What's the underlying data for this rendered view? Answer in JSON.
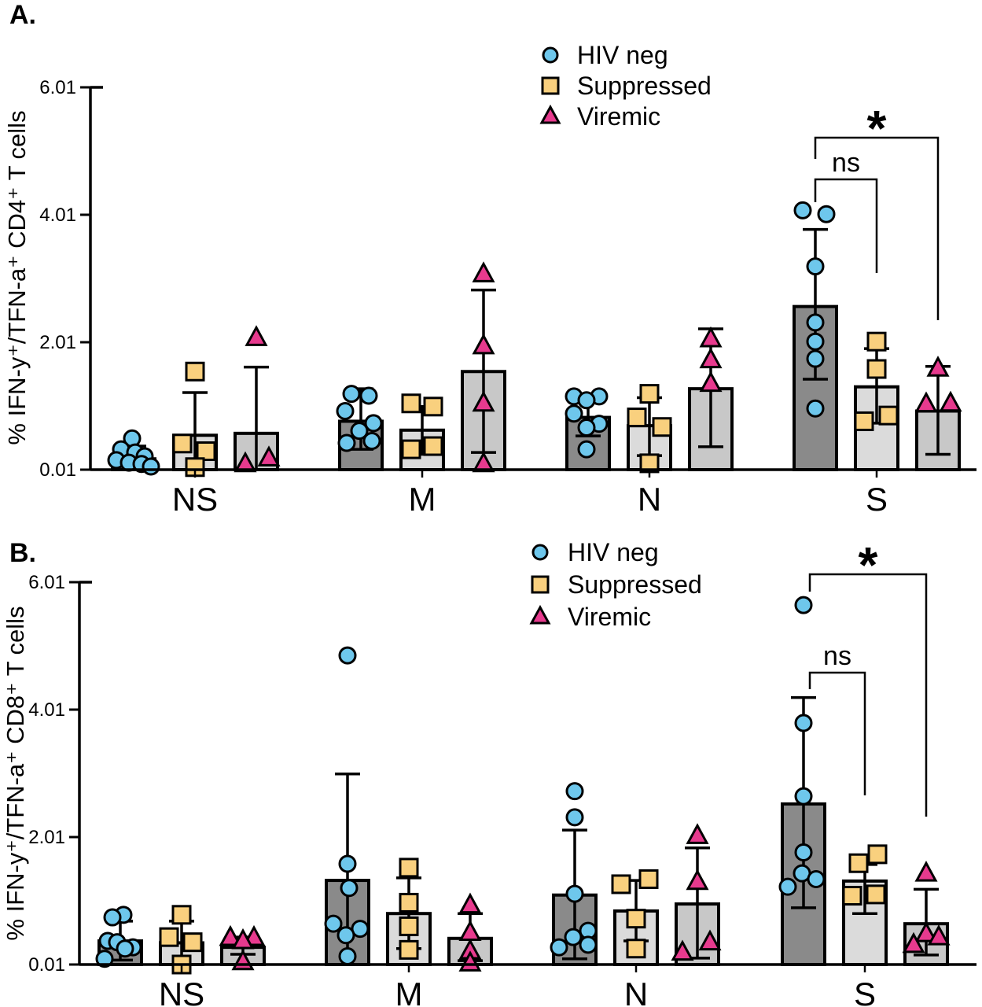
{
  "figure": {
    "panels": [
      {
        "label": "A.",
        "ylabel": "% IFN-y⁺/TFN-a⁺ CD4⁺ T cells"
      },
      {
        "label": "B.",
        "ylabel": "% IFN-y⁺/TFN-a⁺ CD8⁺ T cells"
      }
    ],
    "legend": [
      "HIV neg",
      "Suppressed",
      "Viremic"
    ],
    "colors": {
      "hiv_neg_marker": "#6EC7EC",
      "suppressed_marker": "#F9D07E",
      "viremic_marker": "#E73A8E",
      "hiv_neg_bar": "#8A8A8A",
      "suppressed_bar": "#DBDBDB",
      "viremic_bar": "#C8C8C8",
      "outline": "#000000"
    }
  },
  "chart_data": [
    {
      "type": "bar",
      "title": "",
      "ylabel": "% IFN-y⁺/TFN-a⁺ CD4⁺ T cells",
      "xlabel": "",
      "categories": [
        "NS",
        "M",
        "N",
        "S"
      ],
      "yticks": [
        "0.01",
        "2.01",
        "4.01",
        "6.01"
      ],
      "ytick_values": [
        0.01,
        2.01,
        4.01,
        6.01
      ],
      "ylim": [
        0.01,
        6.01
      ],
      "grid": false,
      "legend_position": "top-center",
      "series": [
        {
          "name": "HIV neg",
          "marker": "circle",
          "marker_color": "#6EC7EC",
          "bar_color": "#8A8A8A",
          "means": [
            0.18,
            0.77,
            0.83,
            2.57
          ],
          "err_lo": [
            0.02,
            0.33,
            0.54,
            1.43
          ],
          "err_hi": [
            0.38,
            1.28,
            1.12,
            3.78
          ],
          "points": [
            [
              {
                "v": 0.5,
                "dx": -2
              },
              {
                "v": 0.33,
                "dx": -16
              },
              {
                "v": 0.28,
                "dx": 2
              },
              {
                "v": 0.22,
                "dx": 14
              },
              {
                "v": 0.16,
                "dx": -22
              },
              {
                "v": 0.12,
                "dx": -6
              },
              {
                "v": 0.1,
                "dx": 10
              },
              {
                "v": 0.06,
                "dx": 22
              }
            ],
            [
              {
                "v": 1.2,
                "dx": -12
              },
              {
                "v": 1.17,
                "dx": 10
              },
              {
                "v": 0.93,
                "dx": -20
              },
              {
                "v": 0.74,
                "dx": 16
              },
              {
                "v": 0.62,
                "dx": -2
              },
              {
                "v": 0.46,
                "dx": 14
              },
              {
                "v": 0.43,
                "dx": -18
              }
            ],
            [
              {
                "v": 1.16,
                "dx": -18
              },
              {
                "v": 1.16,
                "dx": 14
              },
              {
                "v": 1.1,
                "dx": -2
              },
              {
                "v": 0.89,
                "dx": -18
              },
              {
                "v": 0.73,
                "dx": 14
              },
              {
                "v": 0.67,
                "dx": -2
              },
              {
                "v": 0.33,
                "dx": -2
              }
            ],
            [
              {
                "v": 4.08,
                "dx": -16
              },
              {
                "v": 4.02,
                "dx": 14
              },
              {
                "v": 3.2,
                "dx": 0
              },
              {
                "v": 2.32,
                "dx": 0
              },
              {
                "v": 2.02,
                "dx": 0
              },
              {
                "v": 1.75,
                "dx": 0
              },
              {
                "v": 0.97,
                "dx": 0
              }
            ]
          ]
        },
        {
          "name": "Suppressed",
          "marker": "square",
          "marker_color": "#F9D07E",
          "bar_color": "#DBDBDB",
          "means": [
            0.55,
            0.63,
            0.7,
            1.31
          ],
          "err_lo": [
            0.02,
            0.25,
            0.23,
            0.74
          ],
          "err_hi": [
            1.22,
            1.0,
            1.14,
            1.91
          ],
          "points": [
            [
              {
                "v": 1.55,
                "dx": 0
              },
              {
                "v": 0.42,
                "dx": -16
              },
              {
                "v": 0.3,
                "dx": 14
              },
              {
                "v": 0.05,
                "dx": 0
              }
            ],
            [
              {
                "v": 1.05,
                "dx": -14
              },
              {
                "v": 1.0,
                "dx": 14
              },
              {
                "v": 0.38,
                "dx": 14
              },
              {
                "v": 0.33,
                "dx": -14
              }
            ],
            [
              {
                "v": 1.2,
                "dx": 0
              },
              {
                "v": 0.83,
                "dx": -16
              },
              {
                "v": 0.68,
                "dx": 16
              },
              {
                "v": 0.11,
                "dx": 0
              }
            ],
            [
              {
                "v": 2.02,
                "dx": 0
              },
              {
                "v": 1.59,
                "dx": 0
              },
              {
                "v": 0.86,
                "dx": 15
              },
              {
                "v": 0.77,
                "dx": -16
              }
            ]
          ]
        },
        {
          "name": "Viremic",
          "marker": "triangle",
          "marker_color": "#E73A8E",
          "bar_color": "#C8C8C8",
          "means": [
            0.58,
            1.55,
            1.28,
            0.93
          ],
          "err_lo": [
            0.02,
            0.28,
            0.37,
            0.25
          ],
          "err_hi": [
            1.62,
            2.83,
            2.22,
            1.63
          ],
          "points": [
            [
              {
                "v": 2.08,
                "dx": 0
              },
              {
                "v": 0.19,
                "dx": 16
              },
              {
                "v": 0.1,
                "dx": -14
              }
            ],
            [
              {
                "v": 3.08,
                "dx": 0
              },
              {
                "v": 1.95,
                "dx": 0
              },
              {
                "v": 1.05,
                "dx": 0
              },
              {
                "v": 0.1,
                "dx": 0
              }
            ],
            [
              {
                "v": 2.06,
                "dx": 0
              },
              {
                "v": 1.73,
                "dx": 0
              },
              {
                "v": 1.36,
                "dx": 0
              }
            ],
            [
              {
                "v": 1.6,
                "dx": 0
              },
              {
                "v": 1.05,
                "dx": 16
              },
              {
                "v": 1.04,
                "dx": -15
              }
            ]
          ]
        }
      ],
      "annotations": [
        {
          "text": "*",
          "comparison": "HIV neg vs Viremic at S"
        },
        {
          "text": "ns",
          "comparison": "HIV neg vs Suppressed at S"
        }
      ]
    },
    {
      "type": "bar",
      "title": "",
      "ylabel": "% IFN-y⁺/TFN-a⁺ CD8⁺ T cells",
      "xlabel": "",
      "categories": [
        "NS",
        "M",
        "N",
        "S"
      ],
      "yticks": [
        "0.01",
        "2.01",
        "4.01",
        "6.01"
      ],
      "ytick_values": [
        0.01,
        2.01,
        4.01,
        6.01
      ],
      "ylim": [
        0.01,
        6.01
      ],
      "grid": false,
      "legend_position": "top-center",
      "series": [
        {
          "name": "HIV neg",
          "marker": "circle",
          "marker_color": "#6EC7EC",
          "bar_color": "#8A8A8A",
          "means": [
            0.38,
            1.33,
            1.1,
            2.53
          ],
          "err_lo": [
            0.08,
            0.04,
            0.1,
            0.9
          ],
          "err_hi": [
            0.69,
            3.0,
            2.12,
            4.2
          ],
          "points": [
            [
              {
                "v": 0.79,
                "dx": 4
              },
              {
                "v": 0.75,
                "dx": -10
              },
              {
                "v": 0.38,
                "dx": -16
              },
              {
                "v": 0.36,
                "dx": -4
              },
              {
                "v": 0.28,
                "dx": 16
              },
              {
                "v": 0.26,
                "dx": 6
              },
              {
                "v": 0.1,
                "dx": -20
              }
            ],
            [
              {
                "v": 4.86,
                "dx": 0
              },
              {
                "v": 1.59,
                "dx": 0
              },
              {
                "v": 1.21,
                "dx": 2
              },
              {
                "v": 0.65,
                "dx": -18
              },
              {
                "v": 0.57,
                "dx": 16
              },
              {
                "v": 0.47,
                "dx": -2
              },
              {
                "v": 0.14,
                "dx": 0
              }
            ],
            [
              {
                "v": 2.73,
                "dx": 0
              },
              {
                "v": 2.32,
                "dx": 0
              },
              {
                "v": 1.12,
                "dx": 0
              },
              {
                "v": 0.54,
                "dx": 17
              },
              {
                "v": 0.44,
                "dx": -2
              },
              {
                "v": 0.32,
                "dx": 17
              },
              {
                "v": 0.28,
                "dx": -20
              }
            ],
            [
              {
                "v": 5.65,
                "dx": 0
              },
              {
                "v": 3.8,
                "dx": 0
              },
              {
                "v": 2.65,
                "dx": 0
              },
              {
                "v": 1.77,
                "dx": 0
              },
              {
                "v": 1.44,
                "dx": -2
              },
              {
                "v": 1.35,
                "dx": 16
              },
              {
                "v": 1.23,
                "dx": -20
              }
            ]
          ]
        },
        {
          "name": "Suppressed",
          "marker": "square",
          "marker_color": "#F9D07E",
          "bar_color": "#DBDBDB",
          "means": [
            0.35,
            0.81,
            0.85,
            1.32
          ],
          "err_lo": [
            0.02,
            0.26,
            0.38,
            0.81
          ],
          "err_hi": [
            0.69,
            1.37,
            1.33,
            1.58
          ],
          "points": [
            [
              {
                "v": 0.79,
                "dx": 0
              },
              {
                "v": 0.44,
                "dx": -16
              },
              {
                "v": 0.36,
                "dx": 14
              },
              {
                "v": 0.01,
                "dx": 0
              }
            ],
            [
              {
                "v": 1.53,
                "dx": 0
              },
              {
                "v": 0.98,
                "dx": 0
              },
              {
                "v": 0.61,
                "dx": 0
              },
              {
                "v": 0.24,
                "dx": 0
              }
            ],
            [
              {
                "v": 1.35,
                "dx": 16
              },
              {
                "v": 1.27,
                "dx": -19
              },
              {
                "v": 0.73,
                "dx": 0
              },
              {
                "v": 0.26,
                "dx": 0
              }
            ],
            [
              {
                "v": 1.74,
                "dx": 16
              },
              {
                "v": 1.6,
                "dx": -8
              },
              {
                "v": 1.11,
                "dx": 14
              },
              {
                "v": 1.09,
                "dx": -16
              }
            ]
          ]
        },
        {
          "name": "Viremic",
          "marker": "triangle",
          "marker_color": "#E73A8E",
          "bar_color": "#C8C8C8",
          "means": [
            0.28,
            0.42,
            0.96,
            0.65
          ],
          "err_lo": [
            0.17,
            0.07,
            0.11,
            0.16
          ],
          "err_hi": [
            0.44,
            0.81,
            1.84,
            1.19
          ],
          "points": [
            [
              {
                "v": 0.43,
                "dx": -16
              },
              {
                "v": 0.43,
                "dx": 14
              },
              {
                "v": 0.38,
                "dx": 0
              },
              {
                "v": 0.05,
                "dx": 0
              }
            ],
            [
              {
                "v": 0.94,
                "dx": 0
              },
              {
                "v": 0.51,
                "dx": 0
              },
              {
                "v": 0.22,
                "dx": 0
              },
              {
                "v": 0.03,
                "dx": 0
              }
            ],
            [
              {
                "v": 2.03,
                "dx": 0
              },
              {
                "v": 1.31,
                "dx": 0
              },
              {
                "v": 0.36,
                "dx": 16
              },
              {
                "v": 0.2,
                "dx": -19
              }
            ],
            [
              {
                "v": 1.44,
                "dx": 0
              },
              {
                "v": 0.49,
                "dx": 0
              },
              {
                "v": 0.44,
                "dx": 16
              },
              {
                "v": 0.32,
                "dx": -16
              }
            ]
          ]
        }
      ],
      "annotations": [
        {
          "text": "*",
          "comparison": "HIV neg vs Viremic at S"
        },
        {
          "text": "ns",
          "comparison": "HIV neg vs Suppressed at S"
        }
      ]
    }
  ]
}
